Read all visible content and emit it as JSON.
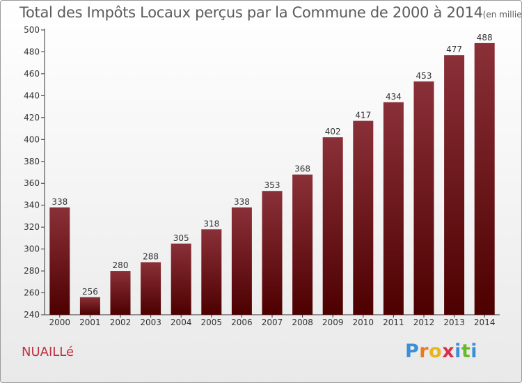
{
  "chart_data": {
    "type": "bar",
    "title": "Total des Impôts Locaux perçus par la Commune de 2000 à 2014",
    "unit_label": "(en milliers d'€)",
    "categories": [
      "2000",
      "2001",
      "2002",
      "2003",
      "2004",
      "2005",
      "2006",
      "2007",
      "2008",
      "2009",
      "2010",
      "2011",
      "2012",
      "2013",
      "2014"
    ],
    "values": [
      338,
      256,
      280,
      288,
      305,
      318,
      338,
      353,
      368,
      402,
      417,
      434,
      453,
      477,
      488
    ],
    "ylim": [
      240,
      500
    ],
    "yticks": [
      240,
      260,
      280,
      300,
      320,
      340,
      360,
      380,
      400,
      420,
      440,
      460,
      480,
      500
    ],
    "grid": false,
    "xlabel": "",
    "ylabel": ""
  },
  "commune": "NUAILLé",
  "logo": {
    "letters": [
      "P",
      "r",
      "o",
      "x",
      "i",
      "t",
      "i"
    ],
    "colors": [
      "#3a8fd6",
      "#e87a1e",
      "#e8b51e",
      "#d6304a",
      "#3a8fd6",
      "#6ab82c",
      "#3a8fd6"
    ]
  },
  "colors": {
    "bar_top": "#8a3038",
    "bar_bottom": "#4d0000",
    "axis": "#333333",
    "label": "#333333"
  }
}
